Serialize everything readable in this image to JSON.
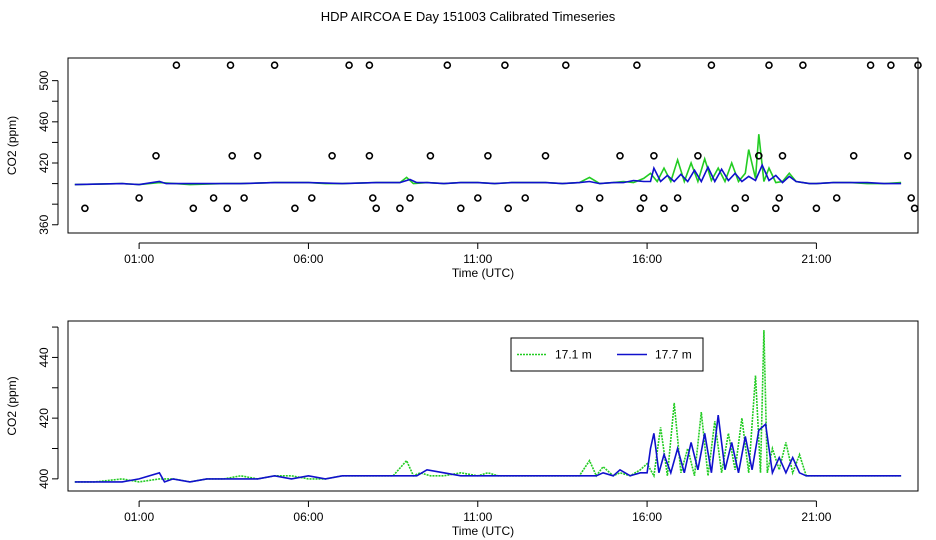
{
  "title": "HDP AIRCOA E  Day 151003  Calibrated Timeseries",
  "colors": {
    "green": "#22cc22",
    "blue": "#1010cc",
    "frame": "#000000"
  },
  "chart_data": [
    {
      "type": "line",
      "name": "top-panel",
      "xlabel": "Time (UTC)",
      "ylabel": "CO2 (ppm)",
      "xlim": [
        -1.1,
        24.0
      ],
      "ylim": [
        352,
        522
      ],
      "xticks": [
        1,
        6,
        11,
        16,
        21
      ],
      "xtick_labels": [
        "01:00",
        "06:00",
        "11:00",
        "16:00",
        "21:00"
      ],
      "yticks": [
        360,
        380,
        400,
        420,
        440,
        460,
        480,
        500
      ],
      "ytick_labels": [
        "360",
        "",
        "",
        "420",
        "",
        "460",
        "",
        "500"
      ],
      "series": [
        {
          "color": "green",
          "x": [
            -0.9,
            0.5,
            1.0,
            1.6,
            2.5,
            3.5,
            4.0,
            5.0,
            6.0,
            6.5,
            7.0,
            8.0,
            8.7,
            8.9,
            9.1,
            9.5,
            10.0,
            10.5,
            11.0,
            11.5,
            12.0,
            12.5,
            13.0,
            13.5,
            14.0,
            14.3,
            14.6,
            15.0,
            15.3,
            15.6,
            15.9,
            16.1,
            16.3,
            16.5,
            16.7,
            16.9,
            17.1,
            17.3,
            17.5,
            17.7,
            17.9,
            18.1,
            18.3,
            18.5,
            18.7,
            18.9,
            19.0,
            19.2,
            19.3,
            19.45,
            19.6,
            19.8,
            20.0,
            20.2,
            20.4,
            20.6,
            20.8,
            21.0,
            21.5,
            22.0,
            22.5,
            23.0,
            23.5
          ],
          "y": [
            399,
            400,
            399,
            401,
            399,
            400,
            400,
            401,
            401,
            400,
            400,
            401,
            401,
            406,
            400,
            401,
            400,
            401,
            401,
            400,
            401,
            401,
            401,
            400,
            401,
            406,
            400,
            401,
            402,
            401,
            405,
            410,
            402,
            415,
            402,
            423,
            402,
            420,
            402,
            424,
            403,
            415,
            402,
            420,
            402,
            410,
            433,
            405,
            448,
            402,
            415,
            401,
            402,
            410,
            402,
            401,
            400,
            400,
            401,
            401,
            400,
            400,
            401
          ]
        },
        {
          "color": "blue",
          "x": [
            -0.9,
            0.5,
            1.0,
            1.6,
            1.8,
            2.5,
            3.5,
            4.0,
            5.0,
            6.0,
            7.0,
            8.0,
            8.7,
            9.0,
            9.2,
            9.5,
            10.0,
            10.5,
            11.0,
            11.5,
            12.0,
            12.5,
            13.0,
            13.5,
            14.0,
            14.3,
            14.6,
            15.0,
            15.3,
            15.6,
            15.9,
            16.1,
            16.2,
            16.4,
            16.6,
            16.8,
            17.0,
            17.2,
            17.4,
            17.6,
            17.8,
            18.0,
            18.2,
            18.4,
            18.6,
            18.8,
            19.0,
            19.2,
            19.4,
            19.6,
            19.8,
            20.0,
            20.2,
            20.4,
            20.6,
            20.8,
            21.0,
            21.5,
            22.0,
            22.5,
            23.0,
            23.5
          ],
          "y": [
            399,
            400,
            399,
            402,
            400,
            400,
            400,
            400,
            401,
            401,
            400,
            401,
            401,
            404,
            401,
            401,
            400,
            401,
            401,
            400,
            401,
            401,
            401,
            400,
            401,
            402,
            400,
            401,
            401,
            403,
            402,
            402,
            415,
            402,
            408,
            402,
            409,
            402,
            413,
            402,
            416,
            402,
            414,
            403,
            410,
            402,
            407,
            403,
            418,
            403,
            408,
            401,
            407,
            402,
            401,
            400,
            400,
            401,
            401,
            401,
            400,
            400
          ]
        }
      ],
      "scatter_x": [
        -0.6,
        1.0,
        1.5,
        2.1,
        2.6,
        3.2,
        3.6,
        3.7,
        3.75,
        4.1,
        4.5,
        5.0,
        5.6,
        6.1,
        6.7,
        7.2,
        7.8,
        7.8,
        7.9,
        8.0,
        8.7,
        9.0,
        9.6,
        10.1,
        10.5,
        11.0,
        11.3,
        11.8,
        11.9,
        12.4,
        13.0,
        13.6,
        14.0,
        14.6,
        15.2,
        15.7,
        15.8,
        15.9,
        16.2,
        16.5,
        16.9,
        17.5,
        17.9,
        18.6,
        18.9,
        19.3,
        19.6,
        19.8,
        19.9,
        20.0,
        20.6,
        21.0,
        21.6,
        22.1,
        22.6,
        23.2,
        23.7,
        23.8,
        23.9,
        24.0
      ],
      "scatter_y": [
        376,
        386,
        427,
        515,
        376,
        386,
        376,
        515,
        427,
        386,
        427,
        515,
        376,
        386,
        427,
        515,
        515,
        427,
        386,
        376,
        376,
        386,
        427,
        515,
        376,
        386,
        427,
        515,
        376,
        386,
        427,
        515,
        376,
        386,
        427,
        515,
        376,
        386,
        427,
        376,
        386,
        427,
        515,
        376,
        386,
        427,
        515,
        376,
        386,
        427,
        515,
        376,
        386,
        427,
        515,
        515,
        427,
        386,
        376,
        515
      ]
    },
    {
      "type": "line",
      "name": "bottom-panel",
      "xlabel": "Time (UTC)",
      "ylabel": "CO2 (ppm)",
      "xlim": [
        -1.1,
        24.0
      ],
      "ylim": [
        396,
        452
      ],
      "xticks": [
        1,
        6,
        11,
        16,
        21
      ],
      "xtick_labels": [
        "01:00",
        "06:00",
        "11:00",
        "16:00",
        "21:00"
      ],
      "yticks": [
        400,
        410,
        420,
        430,
        440,
        450
      ],
      "ytick_labels": [
        "400",
        "",
        "420",
        "",
        "440",
        ""
      ],
      "legend": {
        "position": "top-right",
        "entries": [
          "17.1 m",
          "17.7 m"
        ]
      },
      "series": [
        {
          "name": "17.1 m",
          "color": "green",
          "x": [
            -0.9,
            -0.3,
            0.5,
            1.0,
            1.6,
            2.0,
            2.5,
            3.0,
            3.5,
            4.0,
            4.5,
            5.0,
            5.5,
            6.0,
            6.5,
            7.0,
            7.5,
            8.0,
            8.5,
            8.9,
            9.1,
            9.3,
            9.6,
            10.0,
            10.5,
            11.0,
            11.3,
            11.6,
            12.0,
            12.5,
            13.0,
            13.5,
            14.0,
            14.3,
            14.5,
            14.7,
            15.0,
            15.2,
            15.5,
            15.8,
            16.0,
            16.2,
            16.4,
            16.6,
            16.8,
            17.0,
            17.2,
            17.4,
            17.6,
            17.8,
            18.0,
            18.2,
            18.4,
            18.6,
            18.8,
            19.0,
            19.2,
            19.35,
            19.45,
            19.55,
            19.7,
            19.9,
            20.1,
            20.3,
            20.5,
            20.7,
            21.0,
            21.5,
            22.0,
            22.5,
            23.0,
            23.5
          ],
          "y": [
            399,
            399,
            400,
            399,
            400,
            400,
            399,
            400,
            400,
            401,
            400,
            401,
            401,
            400,
            400,
            401,
            401,
            401,
            401,
            406,
            401,
            402,
            401,
            401,
            402,
            401,
            402,
            401,
            401,
            401,
            401,
            401,
            401,
            406,
            401,
            404,
            401,
            402,
            401,
            403,
            405,
            401,
            417,
            401,
            425,
            402,
            410,
            401,
            422,
            401,
            419,
            402,
            415,
            403,
            420,
            402,
            434,
            402,
            449,
            402,
            410,
            403,
            412,
            402,
            408,
            401,
            401,
            401,
            401,
            401,
            401,
            401
          ]
        },
        {
          "name": "17.7 m",
          "color": "blue",
          "x": [
            -0.9,
            -0.3,
            0.5,
            1.0,
            1.6,
            1.75,
            2.0,
            2.5,
            3.0,
            3.5,
            4.0,
            4.5,
            5.0,
            5.5,
            6.0,
            6.5,
            7.0,
            7.5,
            8.0,
            8.5,
            9.0,
            9.2,
            9.5,
            10.0,
            10.5,
            11.0,
            11.5,
            12.0,
            12.5,
            13.0,
            13.5,
            14.0,
            14.5,
            14.7,
            15.0,
            15.2,
            15.5,
            15.8,
            16.0,
            16.1,
            16.2,
            16.35,
            16.5,
            16.7,
            16.9,
            17.1,
            17.3,
            17.5,
            17.7,
            17.9,
            18.1,
            18.3,
            18.5,
            18.7,
            18.9,
            19.1,
            19.3,
            19.5,
            19.7,
            19.9,
            20.1,
            20.3,
            20.5,
            20.7,
            21.0,
            21.5,
            22.0,
            22.5,
            23.0,
            23.5
          ],
          "y": [
            399,
            399,
            399,
            400,
            402,
            399,
            400,
            399,
            400,
            400,
            400,
            400,
            401,
            400,
            401,
            400,
            401,
            401,
            401,
            401,
            401,
            401,
            403,
            402,
            401,
            401,
            401,
            401,
            401,
            401,
            401,
            401,
            401,
            402,
            401,
            403,
            401,
            402,
            402,
            410,
            415,
            402,
            408,
            402,
            410,
            402,
            412,
            403,
            415,
            402,
            421,
            403,
            412,
            402,
            414,
            403,
            416,
            418,
            402,
            407,
            402,
            407,
            402,
            401,
            401,
            401,
            401,
            401,
            401,
            401
          ]
        }
      ]
    }
  ]
}
